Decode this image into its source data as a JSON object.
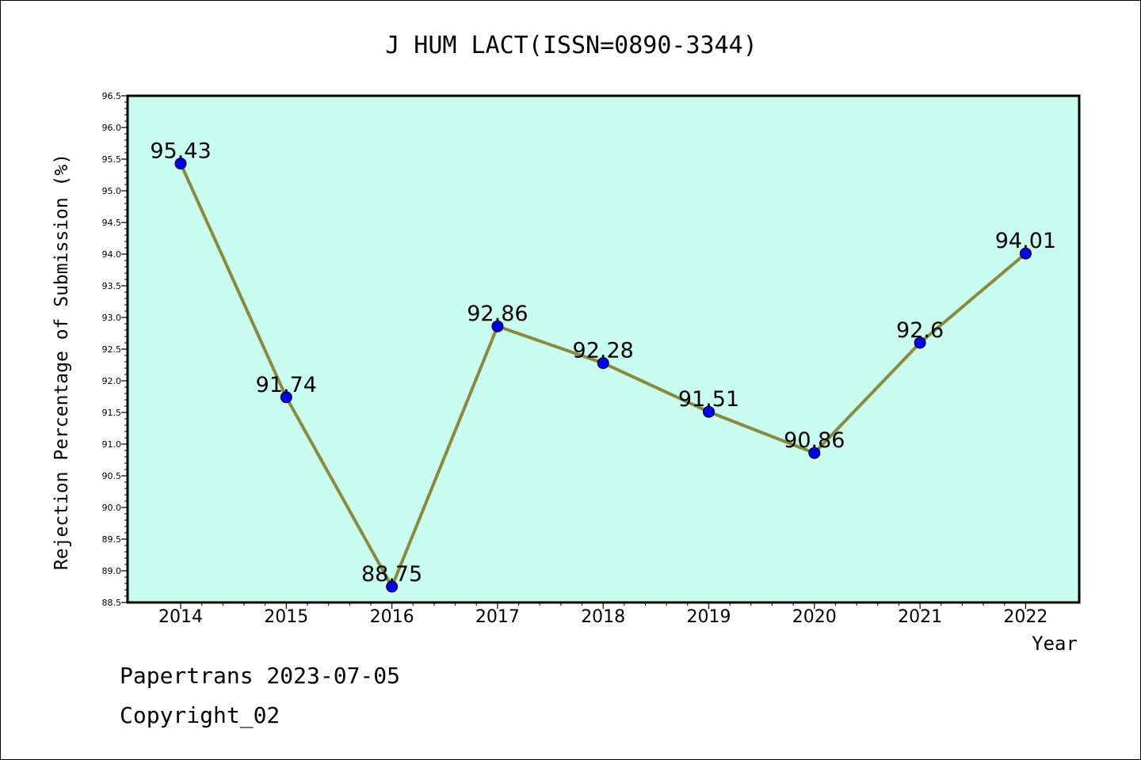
{
  "chart_data": {
    "type": "line",
    "title": "J HUM LACT(ISSN=0890-3344)",
    "xlabel": "Year",
    "ylabel": "Rejection Percentage of Submission (%)",
    "categories": [
      "2014",
      "2015",
      "2016",
      "2017",
      "2018",
      "2019",
      "2020",
      "2021",
      "2022"
    ],
    "series": [
      {
        "values": [
          95.43,
          91.74,
          88.75,
          92.86,
          92.28,
          91.51,
          90.86,
          92.6,
          94.01
        ],
        "labels": [
          "95.43",
          "91.74",
          "88.75",
          "92.86",
          "92.28",
          "91.51",
          "90.86",
          "92.6",
          "94.01"
        ]
      }
    ],
    "ylim": [
      88.5,
      96.5
    ],
    "ytick_labels": [
      "88.5",
      "89.0",
      "89.5",
      "90.0",
      "90.5",
      "91.0",
      "91.5",
      "92.0",
      "92.5",
      "93.0",
      "93.5",
      "94.0",
      "94.5",
      "95.0",
      "95.5",
      "96.0",
      "96.5"
    ],
    "grid": false,
    "colors": {
      "plot_background": "#c8fcee",
      "line": "#8a8a3a",
      "marker": "#0000ee"
    }
  },
  "footer": {
    "line1": "Papertrans 2023-07-05",
    "line2": "Copyright_02"
  }
}
